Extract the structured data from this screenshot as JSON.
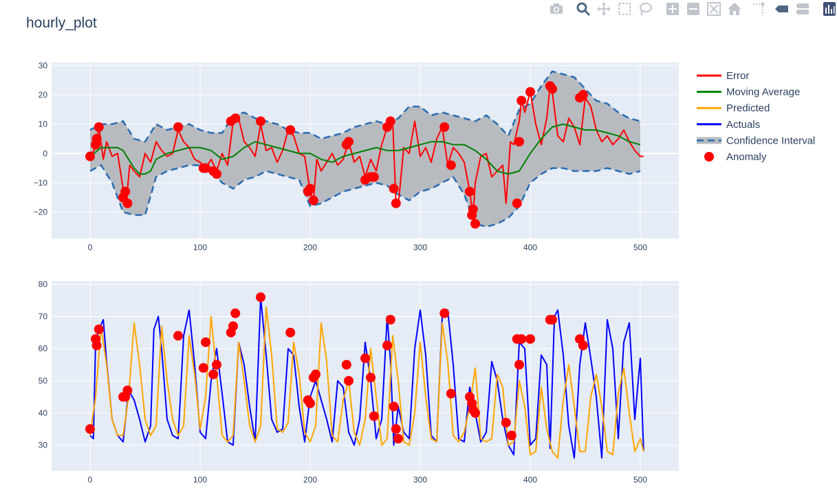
{
  "title": "hourly_plot",
  "modebar": [
    "camera-icon",
    "zoom-icon",
    "pan-icon",
    "box-select-icon",
    "lasso-icon",
    "zoom-in-icon",
    "zoom-out-icon",
    "autoscale-icon",
    "reset-axes-icon",
    "spike-lines-icon",
    "hover-closest-icon",
    "hover-compare-icon",
    "plotly-logo"
  ],
  "colors": {
    "error": "#ff0000",
    "moving_average": "#008000",
    "predicted": "#ffa500",
    "actuals": "#0000ff",
    "ci_fill": "#b7bbc0",
    "ci_line": "#2a6bb0",
    "anomaly": "#ff0000",
    "plot_bg": "#e5ecf6"
  },
  "chart_data": [
    {
      "type": "line",
      "xlim": [
        -35,
        535
      ],
      "ylim": [
        -29,
        31
      ],
      "xticks": [
        0,
        100,
        200,
        300,
        400,
        500
      ],
      "yticks": [
        -20,
        -10,
        0,
        10,
        20,
        30
      ],
      "ytick_labels": [
        "−20",
        "−10",
        "0",
        "10",
        "20",
        "30"
      ],
      "series": [
        {
          "name": "Error",
          "x": [
            0,
            5,
            8,
            12,
            15,
            20,
            25,
            30,
            33,
            36,
            40,
            45,
            50,
            55,
            60,
            65,
            70,
            75,
            80,
            85,
            90,
            95,
            100,
            105,
            110,
            115,
            120,
            125,
            130,
            135,
            140,
            145,
            150,
            155,
            160,
            165,
            170,
            175,
            180,
            185,
            190,
            195,
            200,
            203,
            206,
            210,
            215,
            220,
            225,
            230,
            235,
            240,
            245,
            250,
            255,
            260,
            265,
            270,
            275,
            278,
            280,
            285,
            290,
            295,
            300,
            305,
            310,
            315,
            320,
            325,
            330,
            335,
            340,
            345,
            348,
            350,
            355,
            360,
            365,
            370,
            375,
            378,
            382,
            385,
            390,
            392,
            395,
            400,
            405,
            410,
            415,
            418,
            420,
            425,
            430,
            435,
            440,
            445,
            450,
            455,
            460,
            465,
            470,
            475,
            480,
            485,
            490,
            495,
            500,
            503
          ],
          "y": [
            -1,
            2,
            9,
            -2,
            4,
            -1,
            0,
            -12,
            -16,
            -4,
            -6,
            -8,
            0,
            -3,
            4,
            1,
            -1,
            0,
            8,
            4,
            2,
            -2,
            -3,
            -5,
            -2,
            -6,
            0,
            -4,
            11,
            12,
            4,
            2,
            -1,
            10,
            1,
            2,
            -3,
            1,
            8,
            6,
            0,
            -1,
            -13,
            -16,
            -2,
            -6,
            -3,
            0,
            -4,
            -2,
            4,
            -3,
            -1,
            -8,
            -2,
            -6,
            3,
            9,
            11,
            -17,
            -18,
            2,
            0,
            11,
            -1,
            2,
            -3,
            5,
            9,
            -4,
            2,
            0,
            -3,
            -13,
            -21,
            -10,
            -1,
            0,
            -8,
            -6,
            -4,
            -17,
            4,
            3,
            11,
            18,
            14,
            21,
            10,
            3,
            12,
            23,
            21,
            6,
            4,
            12,
            9,
            3,
            19,
            16,
            8,
            4,
            6,
            3,
            5,
            8,
            4,
            1,
            -1,
            -1
          ]
        },
        {
          "name": "Moving Average",
          "x": [
            0,
            10,
            20,
            25,
            30,
            35,
            40,
            45,
            50,
            55,
            60,
            70,
            80,
            90,
            100,
            110,
            120,
            130,
            140,
            150,
            160,
            170,
            180,
            190,
            200,
            210,
            220,
            230,
            240,
            250,
            260,
            270,
            280,
            290,
            300,
            310,
            320,
            330,
            340,
            350,
            360,
            370,
            380,
            390,
            400,
            410,
            420,
            430,
            440,
            450,
            460,
            470,
            480,
            490,
            500
          ],
          "y": [
            -1,
            2,
            2,
            2,
            1,
            -2,
            -5,
            -7,
            -7,
            -6,
            -2,
            0,
            1,
            2,
            2,
            1,
            -2,
            -1,
            2,
            4,
            3,
            2,
            1,
            0,
            0,
            -2,
            -3,
            -1,
            0,
            1,
            2,
            1,
            1,
            2,
            3,
            4,
            4,
            3,
            3,
            1,
            -2,
            -6,
            -7,
            -6,
            0,
            5,
            9,
            10,
            9,
            8,
            8,
            7,
            6,
            4,
            3
          ]
        },
        {
          "name": "Confidence Interval",
          "upper_x": [
            0,
            10,
            20,
            30,
            40,
            50,
            60,
            70,
            80,
            90,
            100,
            110,
            120,
            130,
            140,
            150,
            160,
            170,
            180,
            190,
            200,
            210,
            220,
            230,
            240,
            250,
            260,
            270,
            280,
            290,
            300,
            310,
            320,
            330,
            340,
            350,
            360,
            370,
            380,
            390,
            400,
            410,
            420,
            430,
            440,
            450,
            460,
            470,
            480,
            490,
            500
          ],
          "upper": [
            8,
            10,
            10,
            11,
            5,
            4,
            10,
            8,
            9,
            10,
            8,
            7,
            7,
            13,
            14,
            12,
            11,
            10,
            8,
            7,
            7,
            5,
            6,
            7,
            9,
            10,
            11,
            10,
            12,
            16,
            16,
            13,
            14,
            13,
            12,
            11,
            13,
            10,
            6,
            15,
            17,
            23,
            28,
            27,
            26,
            22,
            18,
            17,
            14,
            12,
            11
          ],
          "lower": [
            -6,
            -4,
            -10,
            -20,
            -21,
            -21,
            -8,
            -6,
            -5,
            -4,
            -4,
            -6,
            -10,
            -12,
            -9,
            -8,
            -6,
            -7,
            -8,
            -9,
            -18,
            -17,
            -15,
            -13,
            -12,
            -11,
            -10,
            -11,
            -14,
            -16,
            -13,
            -12,
            -10,
            -8,
            -14,
            -24,
            -25,
            -24,
            -22,
            -18,
            -10,
            -7,
            -5,
            -5,
            -6,
            -6,
            -6,
            -5,
            -6,
            -7,
            -6
          ]
        },
        {
          "name": "Anomaly",
          "x": [
            0,
            5,
            6,
            8,
            30,
            32,
            34,
            80,
            103,
            105,
            112,
            115,
            128,
            132,
            155,
            182,
            198,
            200,
            203,
            233,
            235,
            250,
            255,
            258,
            270,
            273,
            276,
            278,
            322,
            328,
            345,
            347,
            348,
            350,
            388,
            390,
            392,
            400,
            418,
            420,
            445,
            448
          ],
          "y": [
            -1,
            3,
            5,
            9,
            -15,
            -13,
            -17,
            9,
            -5,
            -5,
            -6,
            -7,
            11,
            12,
            11,
            8,
            -13,
            -12,
            -16,
            3,
            4,
            -9,
            -8,
            -8,
            9,
            11,
            -12,
            -17,
            9,
            -4,
            -13,
            -21,
            -19,
            -24,
            -17,
            4,
            18,
            21,
            23,
            22,
            19,
            20
          ]
        }
      ]
    },
    {
      "type": "line",
      "xlim": [
        -35,
        535
      ],
      "ylim": [
        22,
        81
      ],
      "xticks": [
        0,
        100,
        200,
        300,
        400,
        500
      ],
      "yticks": [
        30,
        40,
        50,
        60,
        70,
        80
      ],
      "ytick_labels": [
        "30",
        "40",
        "50",
        "60",
        "70",
        "80"
      ],
      "series": [
        {
          "name": "Predicted",
          "x": [
            0,
            5,
            10,
            15,
            20,
            25,
            30,
            35,
            40,
            45,
            50,
            55,
            60,
            65,
            70,
            75,
            80,
            85,
            90,
            95,
            100,
            105,
            110,
            115,
            120,
            125,
            130,
            135,
            140,
            145,
            150,
            155,
            160,
            165,
            170,
            175,
            180,
            185,
            190,
            195,
            200,
            205,
            210,
            215,
            220,
            225,
            230,
            235,
            240,
            245,
            250,
            255,
            260,
            265,
            270,
            275,
            280,
            285,
            290,
            295,
            300,
            305,
            310,
            315,
            320,
            325,
            330,
            335,
            340,
            345,
            350,
            355,
            360,
            365,
            370,
            375,
            380,
            385,
            390,
            395,
            400,
            405,
            410,
            415,
            420,
            425,
            430,
            435,
            440,
            445,
            450,
            455,
            460,
            465,
            470,
            475,
            480,
            485,
            490,
            495,
            500,
            503
          ],
          "y": [
            33,
            45,
            67,
            55,
            38,
            33,
            33,
            45,
            68,
            55,
            38,
            33,
            36,
            67,
            50,
            38,
            33,
            36,
            64,
            52,
            35,
            45,
            70,
            52,
            33,
            31,
            33,
            62,
            50,
            36,
            31,
            36,
            73,
            58,
            35,
            34,
            37,
            62,
            52,
            34,
            31,
            36,
            68,
            56,
            33,
            31,
            44,
            50,
            34,
            30,
            38,
            60,
            45,
            30,
            32,
            64,
            50,
            31,
            30,
            40,
            62,
            45,
            32,
            31,
            68,
            56,
            33,
            31,
            34,
            42,
            54,
            32,
            31,
            32,
            52,
            48,
            30,
            31,
            50,
            42,
            27,
            28,
            48,
            35,
            28,
            26,
            44,
            55,
            42,
            28,
            28,
            45,
            52,
            42,
            28,
            27,
            46,
            54,
            40,
            28,
            32,
            28
          ]
        },
        {
          "name": "Actuals",
          "x": [
            0,
            3,
            5,
            8,
            12,
            15,
            20,
            25,
            30,
            35,
            40,
            45,
            50,
            55,
            58,
            62,
            65,
            70,
            75,
            80,
            85,
            90,
            95,
            100,
            105,
            110,
            115,
            120,
            125,
            130,
            135,
            140,
            145,
            150,
            155,
            160,
            165,
            170,
            175,
            180,
            185,
            190,
            195,
            200,
            205,
            210,
            215,
            220,
            225,
            230,
            235,
            240,
            245,
            250,
            255,
            260,
            265,
            270,
            273,
            276,
            280,
            285,
            290,
            295,
            300,
            305,
            310,
            315,
            320,
            325,
            330,
            335,
            340,
            345,
            350,
            355,
            360,
            365,
            370,
            375,
            380,
            385,
            390,
            395,
            400,
            405,
            410,
            415,
            418,
            422,
            425,
            430,
            435,
            440,
            445,
            450,
            455,
            460,
            465,
            470,
            475,
            480,
            485,
            490,
            495,
            500,
            503
          ],
          "y": [
            33,
            32,
            62,
            66,
            69,
            56,
            38,
            33,
            31,
            47,
            44,
            38,
            31,
            36,
            66,
            70,
            60,
            38,
            33,
            32,
            64,
            72,
            55,
            34,
            32,
            50,
            60,
            46,
            31,
            30,
            62,
            55,
            42,
            31,
            76,
            58,
            38,
            34,
            35,
            60,
            58,
            42,
            31,
            45,
            50,
            44,
            38,
            31,
            50,
            48,
            34,
            30,
            38,
            62,
            50,
            32,
            38,
            70,
            56,
            30,
            42,
            34,
            32,
            60,
            72,
            58,
            33,
            31,
            70,
            72,
            55,
            32,
            31,
            48,
            40,
            31,
            34,
            56,
            50,
            38,
            30,
            27,
            62,
            60,
            30,
            32,
            58,
            55,
            29,
            70,
            72,
            58,
            36,
            26,
            55,
            68,
            57,
            45,
            26,
            69,
            60,
            32,
            62,
            68,
            38,
            57,
            28
          ]
        },
        {
          "name": "Anomaly",
          "x": [
            0,
            5,
            6,
            8,
            30,
            32,
            34,
            80,
            103,
            105,
            112,
            115,
            128,
            130,
            132,
            155,
            182,
            198,
            200,
            203,
            205,
            233,
            235,
            250,
            255,
            258,
            270,
            273,
            276,
            278,
            280,
            322,
            328,
            345,
            347,
            348,
            350,
            378,
            383,
            388,
            390,
            392,
            400,
            418,
            420,
            445,
            448
          ],
          "y": [
            35,
            63,
            61,
            66,
            45,
            45,
            47,
            64,
            54,
            62,
            52,
            55,
            65,
            67,
            71,
            76,
            65,
            44,
            43,
            51,
            52,
            55,
            50,
            57,
            51,
            39,
            61,
            69,
            42,
            35,
            32,
            71,
            46,
            45,
            43,
            41,
            40,
            37,
            33,
            63,
            55,
            63,
            63,
            69,
            69,
            63,
            61
          ]
        }
      ]
    }
  ]
}
